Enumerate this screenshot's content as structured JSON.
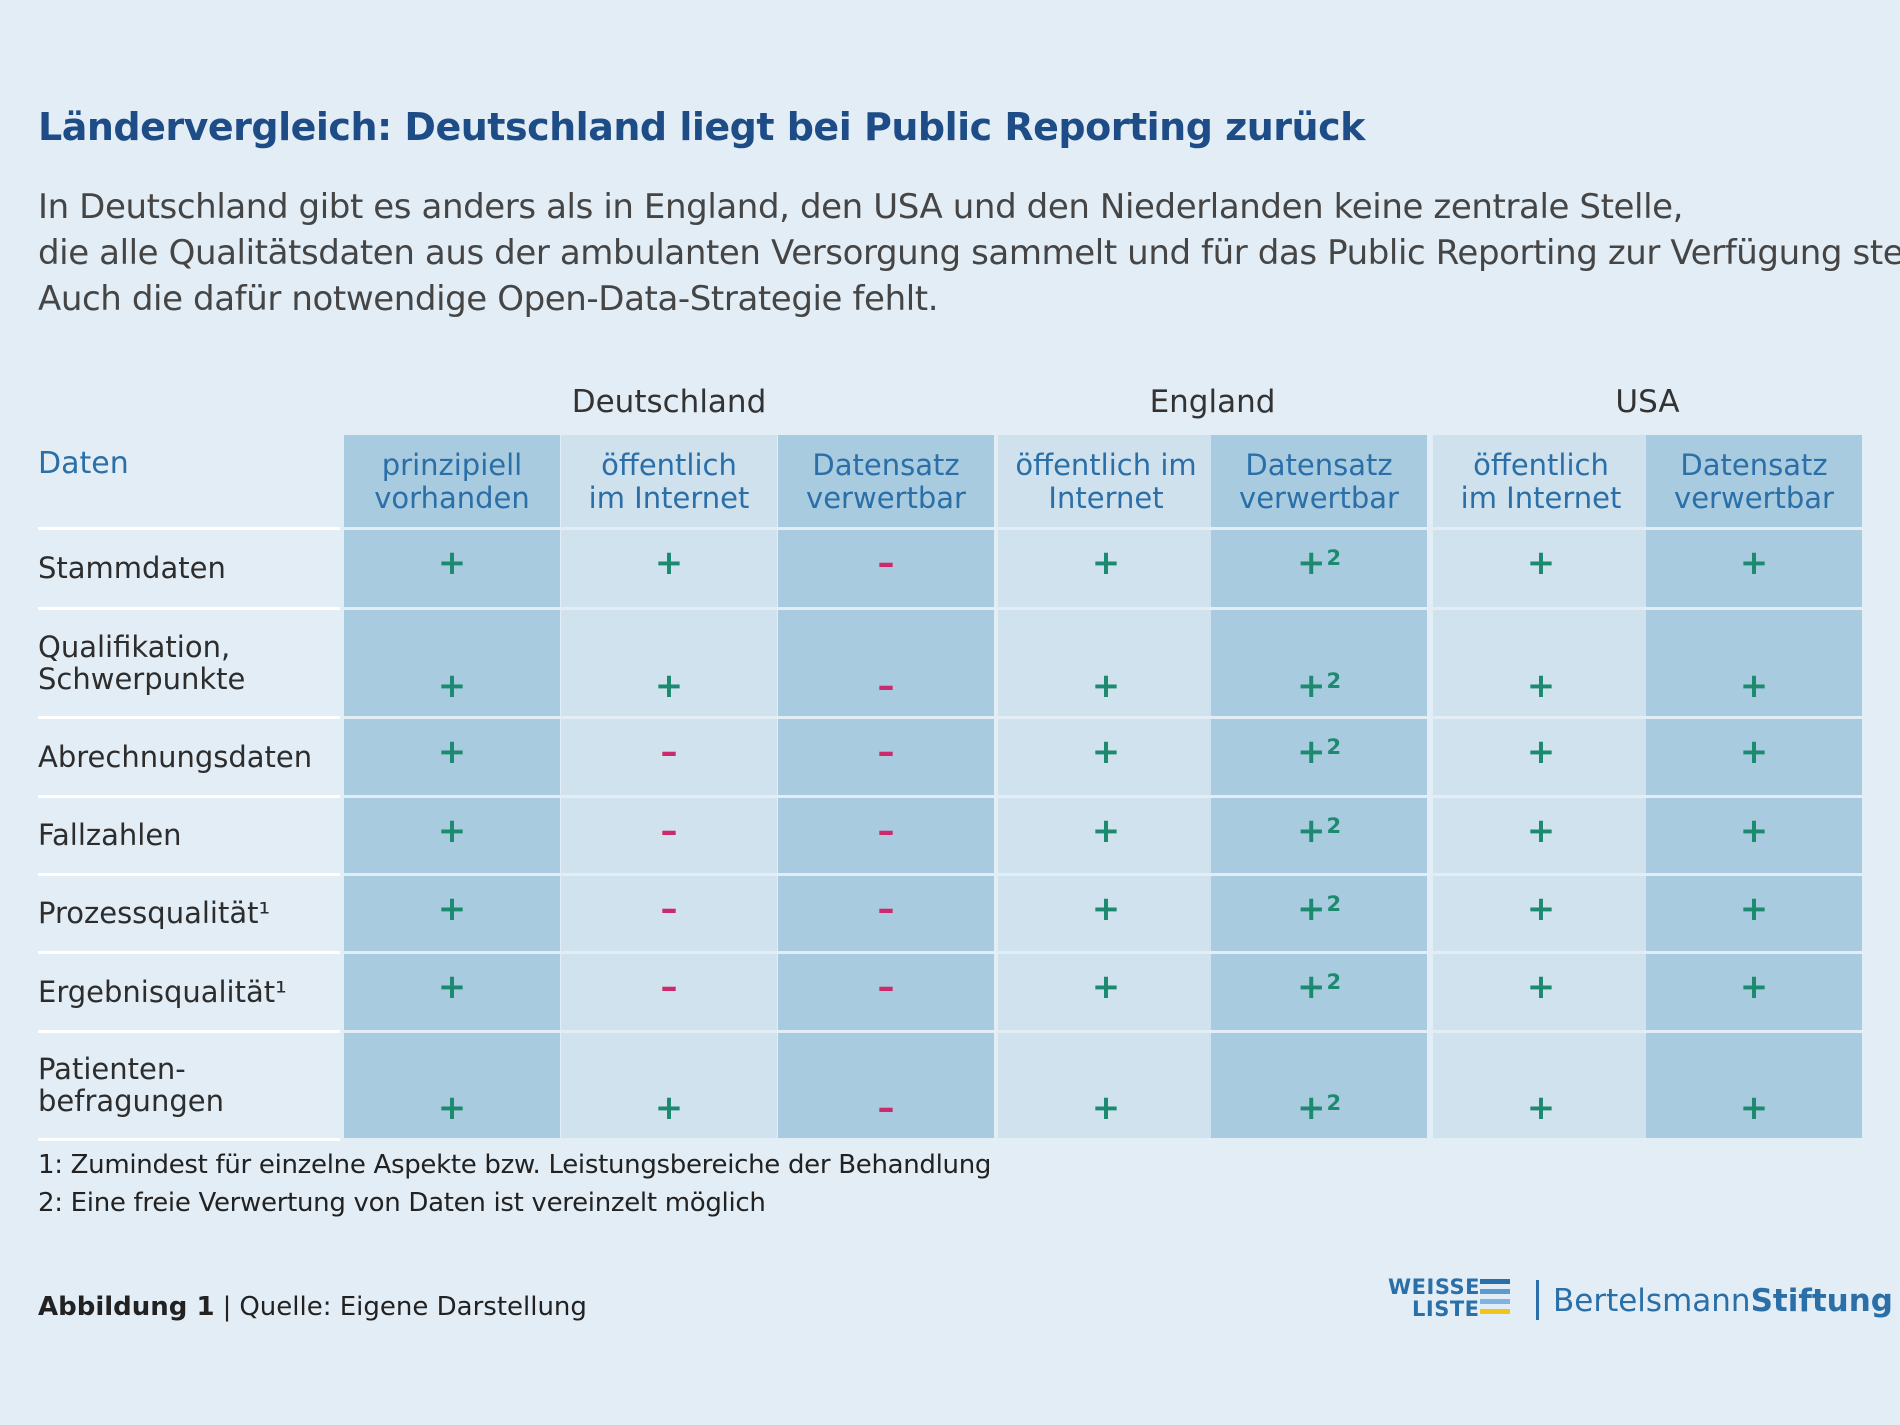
{
  "title": "Ländervergleich: Deutschland liegt bei Public Reporting zurück",
  "intro_lines": [
    "In Deutschland gibt es anders als in England, den USA und den Niederlanden keine zentrale Stelle,",
    "die alle Qualitätsdaten aus der ambulanten Versorgung sammelt und für das Public Reporting zur Verfügung stellt.",
    "Auch die dafür notwendige Open-Data-Strategie fehlt."
  ],
  "colors": {
    "title": "#1d4c86",
    "header_text": "#2a6fa8",
    "plus": "#1c8a6e",
    "minus": "#cc2a6a",
    "dark_col": "#a9cbe0",
    "light_col": "#d0e2ee"
  },
  "chart_data": {
    "type": "table",
    "row_header": "Daten",
    "groups": [
      {
        "name": "Deutschland",
        "columns": [
          "prinzipiell vorhanden",
          "öffentlich im Internet",
          "Datensatz verwertbar"
        ]
      },
      {
        "name": "England",
        "columns": [
          "öffentlich im Internet",
          "Datensatz verwertbar"
        ]
      },
      {
        "name": "USA",
        "columns": [
          "öffentlich im Internet",
          "Datensatz verwertbar"
        ]
      }
    ],
    "column_headers": [
      [
        "prinzipiell",
        "vorhanden"
      ],
      [
        "öffentlich",
        "im Internet"
      ],
      [
        "Datensatz",
        "verwertbar"
      ],
      [
        "öffentlich im",
        "Internet"
      ],
      [
        "Datensatz",
        "verwertbar"
      ],
      [
        "öffentlich",
        "im Internet"
      ],
      [
        "Datensatz",
        "verwertbar"
      ]
    ],
    "rows": [
      {
        "label": [
          "Stammdaten"
        ],
        "values": [
          "+",
          "+",
          "–",
          "+",
          "+2",
          "+",
          "+"
        ]
      },
      {
        "label": [
          "Qualifikation,",
          "Schwerpunkte"
        ],
        "values": [
          "+",
          "+",
          "–",
          "+",
          "+2",
          "+",
          "+"
        ]
      },
      {
        "label": [
          "Abrechnungsdaten"
        ],
        "values": [
          "+",
          "–",
          "–",
          "+",
          "+2",
          "+",
          "+"
        ]
      },
      {
        "label": [
          "Fallzahlen"
        ],
        "values": [
          "+",
          "–",
          "–",
          "+",
          "+2",
          "+",
          "+"
        ]
      },
      {
        "label": [
          "Prozessqualität¹"
        ],
        "values": [
          "+",
          "–",
          "–",
          "+",
          "+2",
          "+",
          "+"
        ]
      },
      {
        "label": [
          "Ergebnisqualität¹"
        ],
        "values": [
          "+",
          "–",
          "–",
          "+",
          "+2",
          "+",
          "+"
        ]
      },
      {
        "label": [
          "Patienten-",
          "befragungen"
        ],
        "values": [
          "+",
          "+",
          "–",
          "+",
          "+2",
          "+",
          "+"
        ]
      }
    ],
    "footnotes": [
      "1: Zumindest für einzelne Aspekte bzw. Leistungsbereiche der Behandlung",
      "2: Eine freie Verwertung von Daten ist vereinzelt möglich"
    ]
  },
  "footer": {
    "figure": "Abbildung 1",
    "separator": "|",
    "source": "Quelle: Eigene Darstellung"
  },
  "logos": {
    "weisse_liste_line1": "WEISSE",
    "weisse_liste_line2": "LISTE",
    "bertelsmann_regular": "Bertelsmann",
    "bertelsmann_bold": "Stiftung"
  }
}
